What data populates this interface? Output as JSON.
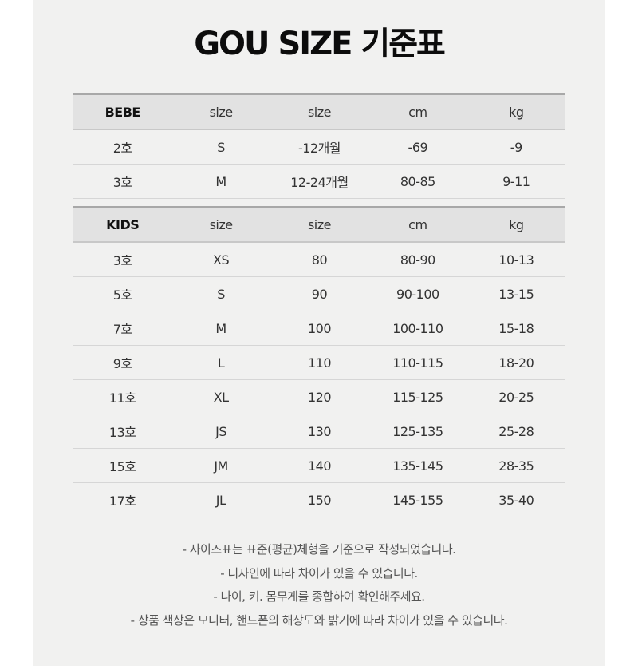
{
  "title": "GOU SIZE 기준표",
  "bebe": {
    "headers": [
      "BEBE",
      "size",
      "size",
      "cm",
      "kg"
    ],
    "rows": [
      [
        "2호",
        "S",
        "-12개월",
        "-69",
        "-9"
      ],
      [
        "3호",
        "M",
        "12-24개월",
        "80-85",
        "9-11"
      ]
    ]
  },
  "kids": {
    "headers": [
      "KIDS",
      "size",
      "size",
      "cm",
      "kg"
    ],
    "rows": [
      [
        "3호",
        "XS",
        "80",
        "80-90",
        "10-13"
      ],
      [
        "5호",
        "S",
        "90",
        "90-100",
        "13-15"
      ],
      [
        "7호",
        "M",
        "100",
        "100-110",
        "15-18"
      ],
      [
        "9호",
        "L",
        "110",
        "110-115",
        "18-20"
      ],
      [
        "11호",
        "XL",
        "120",
        "115-125",
        "20-25"
      ],
      [
        "13호",
        "JS",
        "130",
        "125-135",
        "25-28"
      ],
      [
        "15호",
        "JM",
        "140",
        "135-145",
        "28-35"
      ],
      [
        "17호",
        "JL",
        "150",
        "145-155",
        "35-40"
      ]
    ]
  },
  "notes": [
    "- 사이즈표는 표준(평균)체형을 기준으로 작성되었습니다.",
    "- 디자인에 따라 차이가 있을 수 있습니다.",
    "- 나이, 키. 몸무게를 종합하여 확인해주세요.",
    "- 상품 색상은 모니터, 핸드폰의 해상도와 밝기에 따라 차이가 있을 수 있습니다."
  ]
}
